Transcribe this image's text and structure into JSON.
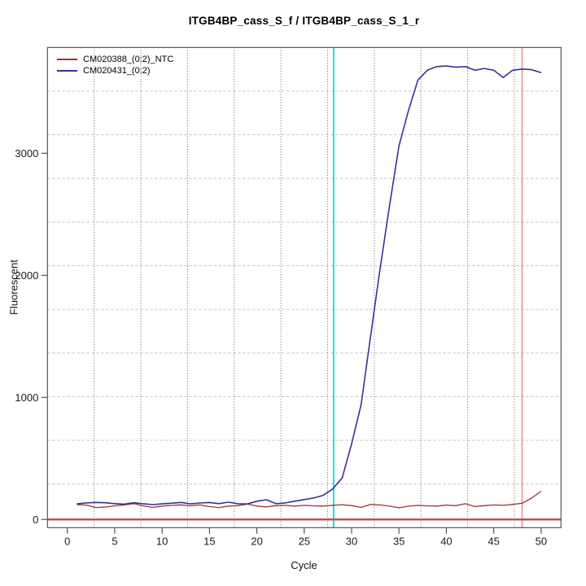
{
  "figure": {
    "title": "ITGB4BP_cass_S_f / ITGB4BP_cass_S_1_r"
  },
  "chart_data": {
    "type": "line",
    "title": "ITGB4BP_cass_S_f / ITGB4BP_cass_S_1_r",
    "xlabel": "Cycle",
    "ylabel": "Fluorescent",
    "xlim": [
      -2.1,
      52.1
    ],
    "ylim": [
      -67,
      3867
    ],
    "x_ticks": [
      0,
      5,
      10,
      15,
      20,
      25,
      30,
      35,
      40,
      45,
      50
    ],
    "y_ticks": [
      0,
      1000,
      2000,
      3000
    ],
    "grid": {
      "on": true,
      "nx": 11,
      "ny": 11,
      "v_color": "#666666",
      "h_color": "#c6c6c6"
    },
    "legend_position": "top-left",
    "axis_color": "#555555",
    "tick_label_color": "#1a1a1a",
    "x": [
      1,
      2,
      3,
      4,
      5,
      6,
      7,
      8,
      9,
      10,
      11,
      12,
      13,
      14,
      15,
      16,
      17,
      18,
      19,
      20,
      21,
      22,
      23,
      24,
      25,
      26,
      27,
      28,
      29,
      30,
      31,
      32,
      33,
      34,
      35,
      36,
      37,
      38,
      39,
      40,
      41,
      42,
      43,
      44,
      45,
      46,
      47,
      48,
      49,
      50
    ],
    "series": [
      {
        "name": "CM020388_(0:2)_NTC",
        "color": "#9e3232",
        "width": 1.3,
        "values": [
          122,
          118,
          98,
          102,
          112,
          120,
          130,
          112,
          99,
          110,
          115,
          120,
          112,
          119,
          106,
          98,
          110,
          113,
          126,
          110,
          103,
          113,
          116,
          110,
          116,
          112,
          110,
          116,
          121,
          113,
          99,
          123,
          119,
          109,
          96,
          109,
          116,
          112,
          110,
          118,
          113,
          129,
          106,
          113,
          119,
          116,
          123,
          133,
          175,
          232
        ]
      },
      {
        "name": "CM020431_(0:2)",
        "color": "#333399",
        "width": 1.6,
        "values": [
          128,
          136,
          140,
          137,
          130,
          126,
          137,
          129,
          122,
          128,
          133,
          140,
          128,
          135,
          139,
          130,
          142,
          129,
          127,
          150,
          162,
          130,
          136,
          150,
          163,
          176,
          198,
          250,
          340,
          620,
          940,
          1500,
          2050,
          2570,
          3060,
          3350,
          3600,
          3680,
          3710,
          3715,
          3705,
          3710,
          3680,
          3695,
          3680,
          3620,
          3680,
          3690,
          3685,
          3660
        ]
      }
    ],
    "annotations": {
      "threshold_vline": {
        "x": 28.1,
        "color": "#00dfe8",
        "width": 1.8
      },
      "cutoff_vline": {
        "x": 48.0,
        "color": "#ec9494",
        "width": 1.6
      },
      "zero_hline": {
        "y": 0,
        "color": "#b25555",
        "width": 2.4
      }
    }
  }
}
